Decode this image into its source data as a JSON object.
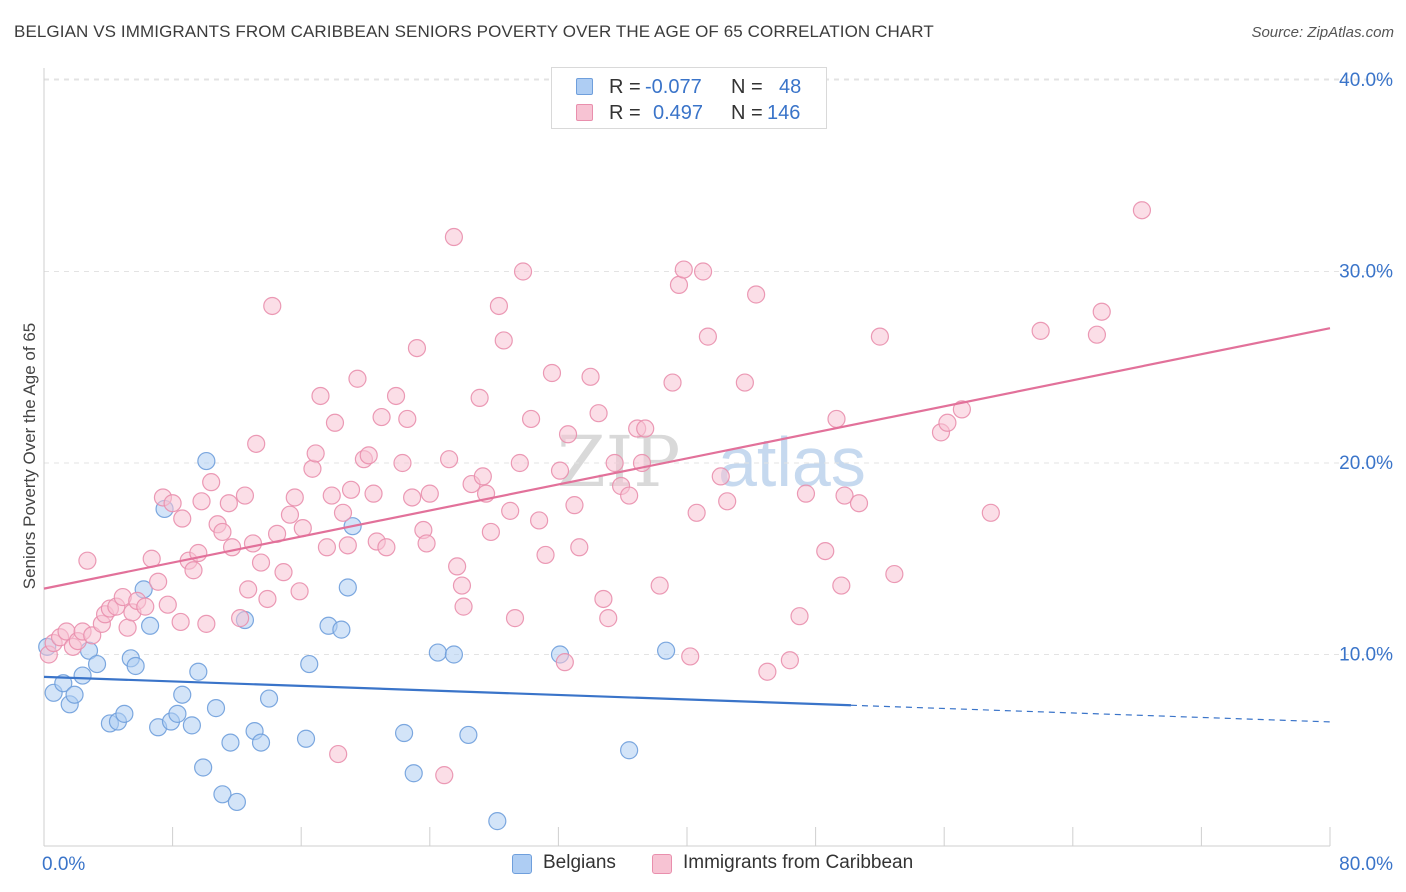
{
  "title": "BELGIAN VS IMMIGRANTS FROM CARIBBEAN SENIORS POVERTY OVER THE AGE OF 65 CORRELATION CHART",
  "source": "Source: ZipAtlas.com",
  "watermark": {
    "zip": "ZIP",
    "atlas": "atlas"
  },
  "legend_top": {
    "rows": [
      {
        "r_label": "R =",
        "r_value": "-0.077",
        "n_label": "N =",
        "n_value": "48"
      },
      {
        "r_label": "R =",
        "r_value": "0.497",
        "n_label": "N =",
        "n_value": "146"
      }
    ]
  },
  "legend_bottom": {
    "items": [
      "Belgians",
      "Immigrants from Caribbean"
    ]
  },
  "colors": {
    "belgians_fill": "#aecdf3",
    "belgians_stroke": "#6f9fdc",
    "belgians_line": "#3a74c9",
    "caribbean_fill": "#f7c3d3",
    "caribbean_stroke": "#e98fad",
    "caribbean_line": "#e2719a",
    "tick_label": "#3a74c9",
    "grid": "#e3e3e3"
  },
  "chart_data": {
    "type": "scatter",
    "title": "BELGIAN VS IMMIGRANTS FROM CARIBBEAN SENIORS POVERTY OVER THE AGE OF 65 CORRELATION CHART",
    "xlabel": "",
    "ylabel": "Seniors Poverty Over the Age of 65",
    "xlim": [
      0,
      80
    ],
    "ylim": [
      0,
      40.5
    ],
    "x_tick_labels": [
      "0.0%",
      "80.0%"
    ],
    "y_ticks": [
      10,
      20,
      30,
      40
    ],
    "y_tick_labels": [
      "10.0%",
      "20.0%",
      "30.0%",
      "40.0%"
    ],
    "grid": true,
    "legend_position": "top-center",
    "series": [
      {
        "name": "Belgians",
        "points": [
          [
            0.2,
            10.4
          ],
          [
            0.6,
            8.0
          ],
          [
            1.2,
            8.5
          ],
          [
            1.6,
            7.4
          ],
          [
            1.9,
            7.9
          ],
          [
            2.4,
            8.9
          ],
          [
            2.8,
            10.2
          ],
          [
            3.3,
            9.5
          ],
          [
            4.1,
            6.4
          ],
          [
            4.6,
            6.5
          ],
          [
            5.0,
            6.9
          ],
          [
            5.4,
            9.8
          ],
          [
            5.7,
            9.4
          ],
          [
            6.2,
            13.4
          ],
          [
            6.6,
            11.5
          ],
          [
            7.1,
            6.2
          ],
          [
            7.5,
            17.6
          ],
          [
            7.9,
            6.5
          ],
          [
            8.3,
            6.9
          ],
          [
            8.6,
            7.9
          ],
          [
            9.2,
            6.3
          ],
          [
            9.6,
            9.1
          ],
          [
            9.9,
            4.1
          ],
          [
            10.1,
            20.1
          ],
          [
            10.7,
            7.2
          ],
          [
            11.1,
            2.7
          ],
          [
            11.6,
            5.4
          ],
          [
            12.0,
            2.3
          ],
          [
            12.5,
            11.8
          ],
          [
            13.1,
            6.0
          ],
          [
            13.5,
            5.4
          ],
          [
            14.0,
            7.7
          ],
          [
            16.3,
            5.6
          ],
          [
            16.5,
            9.5
          ],
          [
            17.7,
            11.5
          ],
          [
            18.5,
            11.3
          ],
          [
            18.9,
            13.5
          ],
          [
            19.2,
            16.7
          ],
          [
            22.4,
            5.9
          ],
          [
            23.0,
            3.8
          ],
          [
            24.5,
            10.1
          ],
          [
            25.5,
            10.0
          ],
          [
            26.4,
            5.8
          ],
          [
            28.2,
            1.3
          ],
          [
            32.1,
            10.0
          ],
          [
            36.4,
            5.0
          ],
          [
            38.7,
            10.2
          ]
        ],
        "trend": {
          "x": [
            0,
            50.2
          ],
          "y": [
            8.83,
            7.35
          ]
        },
        "trend_dashed": {
          "x": [
            50.2,
            80
          ],
          "y": [
            7.35,
            6.48
          ]
        }
      },
      {
        "name": "Immigrants from Caribbean",
        "points": [
          [
            0.3,
            10.0
          ],
          [
            0.6,
            10.6
          ],
          [
            1.0,
            10.9
          ],
          [
            1.4,
            11.2
          ],
          [
            1.8,
            10.4
          ],
          [
            2.1,
            10.7
          ],
          [
            2.4,
            11.2
          ],
          [
            2.7,
            14.9
          ],
          [
            3.0,
            11.0
          ],
          [
            3.6,
            11.6
          ],
          [
            3.8,
            12.1
          ],
          [
            4.1,
            12.4
          ],
          [
            4.5,
            12.5
          ],
          [
            4.9,
            13.0
          ],
          [
            5.2,
            11.4
          ],
          [
            5.5,
            12.2
          ],
          [
            5.8,
            12.8
          ],
          [
            6.3,
            12.5
          ],
          [
            6.7,
            15.0
          ],
          [
            7.1,
            13.8
          ],
          [
            7.4,
            18.2
          ],
          [
            7.7,
            12.6
          ],
          [
            8.0,
            17.9
          ],
          [
            8.5,
            11.7
          ],
          [
            8.6,
            17.1
          ],
          [
            9.0,
            14.9
          ],
          [
            9.3,
            14.4
          ],
          [
            9.6,
            15.3
          ],
          [
            9.8,
            18.0
          ],
          [
            10.1,
            11.6
          ],
          [
            10.4,
            19.0
          ],
          [
            10.8,
            16.8
          ],
          [
            11.1,
            16.4
          ],
          [
            11.5,
            17.9
          ],
          [
            11.7,
            15.6
          ],
          [
            12.2,
            11.9
          ],
          [
            12.5,
            18.3
          ],
          [
            12.7,
            13.4
          ],
          [
            13.0,
            15.8
          ],
          [
            13.2,
            21.0
          ],
          [
            13.5,
            14.8
          ],
          [
            13.9,
            12.9
          ],
          [
            14.2,
            28.2
          ],
          [
            14.5,
            16.3
          ],
          [
            14.9,
            14.3
          ],
          [
            15.3,
            17.3
          ],
          [
            15.6,
            18.2
          ],
          [
            15.9,
            13.3
          ],
          [
            16.1,
            16.6
          ],
          [
            16.7,
            19.7
          ],
          [
            16.9,
            20.5
          ],
          [
            17.2,
            23.5
          ],
          [
            17.6,
            15.6
          ],
          [
            17.9,
            18.3
          ],
          [
            18.1,
            22.1
          ],
          [
            18.3,
            4.8
          ],
          [
            18.6,
            17.4
          ],
          [
            18.9,
            15.7
          ],
          [
            19.1,
            18.6
          ],
          [
            19.5,
            24.4
          ],
          [
            19.9,
            20.2
          ],
          [
            20.2,
            20.4
          ],
          [
            20.5,
            18.4
          ],
          [
            20.7,
            15.9
          ],
          [
            21.0,
            22.4
          ],
          [
            21.3,
            15.6
          ],
          [
            21.9,
            23.5
          ],
          [
            22.3,
            20.0
          ],
          [
            22.6,
            22.3
          ],
          [
            22.9,
            18.2
          ],
          [
            23.2,
            26.0
          ],
          [
            23.6,
            16.5
          ],
          [
            23.8,
            15.8
          ],
          [
            24.0,
            18.4
          ],
          [
            24.9,
            3.7
          ],
          [
            25.2,
            20.2
          ],
          [
            25.5,
            31.8
          ],
          [
            25.7,
            14.6
          ],
          [
            26.0,
            13.6
          ],
          [
            26.1,
            12.5
          ],
          [
            26.6,
            18.9
          ],
          [
            27.1,
            23.4
          ],
          [
            27.3,
            19.3
          ],
          [
            27.5,
            18.4
          ],
          [
            27.8,
            16.4
          ],
          [
            28.3,
            28.2
          ],
          [
            28.6,
            26.4
          ],
          [
            29.0,
            17.5
          ],
          [
            29.3,
            11.9
          ],
          [
            29.6,
            20.0
          ],
          [
            29.8,
            30.0
          ],
          [
            30.3,
            22.3
          ],
          [
            30.8,
            17.0
          ],
          [
            31.2,
            15.2
          ],
          [
            31.6,
            24.7
          ],
          [
            32.4,
            9.6
          ],
          [
            32.1,
            19.6
          ],
          [
            32.6,
            21.5
          ],
          [
            33.0,
            17.8
          ],
          [
            33.3,
            15.6
          ],
          [
            34.0,
            24.5
          ],
          [
            34.5,
            22.6
          ],
          [
            34.8,
            12.9
          ],
          [
            35.1,
            11.9
          ],
          [
            35.5,
            20.0
          ],
          [
            35.9,
            18.8
          ],
          [
            36.4,
            18.3
          ],
          [
            36.9,
            21.8
          ],
          [
            37.2,
            20.0
          ],
          [
            37.4,
            21.8
          ],
          [
            38.3,
            13.6
          ],
          [
            39.1,
            24.2
          ],
          [
            39.5,
            29.3
          ],
          [
            39.8,
            30.1
          ],
          [
            40.2,
            9.9
          ],
          [
            40.6,
            17.4
          ],
          [
            41.0,
            30.0
          ],
          [
            41.3,
            26.6
          ],
          [
            42.1,
            19.3
          ],
          [
            42.5,
            18.0
          ],
          [
            43.6,
            24.2
          ],
          [
            44.3,
            28.8
          ],
          [
            45.0,
            9.1
          ],
          [
            46.4,
            9.7
          ],
          [
            47.0,
            12.0
          ],
          [
            47.4,
            18.4
          ],
          [
            48.6,
            15.4
          ],
          [
            49.3,
            22.3
          ],
          [
            49.6,
            13.6
          ],
          [
            49.8,
            18.3
          ],
          [
            50.7,
            17.9
          ],
          [
            52.0,
            26.6
          ],
          [
            52.9,
            14.2
          ],
          [
            55.8,
            21.6
          ],
          [
            56.2,
            22.1
          ],
          [
            57.1,
            22.8
          ],
          [
            58.9,
            17.4
          ],
          [
            62.0,
            26.9
          ],
          [
            65.5,
            26.7
          ],
          [
            65.8,
            27.9
          ],
          [
            68.3,
            33.2
          ]
        ],
        "trend": {
          "x": [
            0,
            80
          ],
          "y": [
            13.44,
            27.04
          ]
        }
      }
    ]
  }
}
